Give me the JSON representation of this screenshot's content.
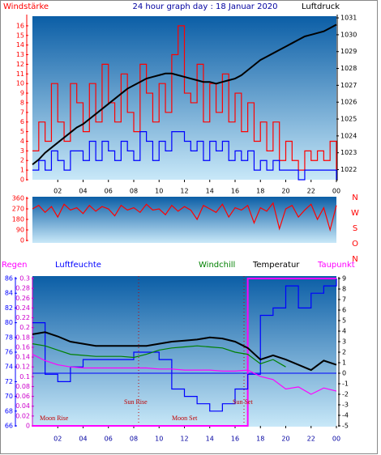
{
  "chart_data": [
    {
      "type": "line",
      "title": "24 hour graph day : 18 Januar 2020",
      "ylabel": "Windstärke",
      "y2label": "Luftdruck",
      "x": [
        0,
        0.5,
        1,
        1.5,
        2,
        2.5,
        3,
        3.5,
        4,
        4.5,
        5,
        5.5,
        6,
        6.5,
        7,
        7.5,
        8,
        8.5,
        9,
        9.5,
        10,
        10.5,
        11,
        11.5,
        12,
        12.5,
        13,
        13.5,
        14,
        14.5,
        15,
        15.5,
        16,
        16.5,
        17,
        17.5,
        18,
        18.5,
        19,
        19.5,
        20,
        20.5,
        21,
        21.5,
        22,
        22.5,
        23,
        23.5,
        24
      ],
      "xlim": [
        0,
        24
      ],
      "xticks": [
        {
          "value": 2,
          "label": "02"
        },
        {
          "value": 4,
          "label": "04"
        },
        {
          "value": 6,
          "label": "06"
        },
        {
          "value": 8,
          "label": "08"
        },
        10,
        12,
        14,
        16,
        18,
        20,
        22,
        {
          "value": 24,
          "label": "00"
        }
      ],
      "ylim": [
        0,
        17
      ],
      "yticks": [
        0,
        1,
        2,
        3,
        4,
        5,
        6,
        7,
        8,
        9,
        10,
        11,
        12,
        13,
        14,
        15,
        16
      ],
      "y2lim": [
        1021.4,
        1031.1
      ],
      "y2ticks": [
        1022,
        1023,
        1024,
        1025,
        1026,
        1027,
        1028,
        1029,
        1030,
        1031
      ],
      "series": [
        {
          "color": "#ff0000",
          "style": "step",
          "values": [
            3,
            6,
            4,
            10,
            6,
            4,
            10,
            8,
            5,
            10,
            6,
            12,
            8,
            6,
            11,
            7,
            5,
            12,
            9,
            6,
            10,
            7,
            13,
            16,
            9,
            8,
            12,
            6,
            10,
            7,
            11,
            6,
            9,
            5,
            8,
            4,
            6,
            3,
            6,
            2,
            4,
            2,
            1,
            3,
            2,
            3,
            2,
            4,
            1
          ]
        },
        {
          "color": "#0000ff",
          "style": "step",
          "values": [
            1,
            2,
            1,
            3,
            2,
            1,
            3,
            3,
            2,
            4,
            2,
            4,
            3,
            2,
            4,
            3,
            2,
            5,
            4,
            2,
            4,
            3,
            5,
            5,
            4,
            3,
            4,
            2,
            4,
            3,
            4,
            2,
            3,
            2,
            3,
            1,
            2,
            1,
            2,
            1,
            1,
            1,
            0,
            1,
            1,
            1,
            1,
            1,
            0
          ]
        },
        {
          "color": "#000000",
          "style": "line",
          "axis": "y2",
          "values": [
            1022.3,
            1022.6,
            1023.0,
            1023.3,
            1023.6,
            1023.9,
            1024.2,
            1024.5,
            1024.7,
            1025.0,
            1025.3,
            1025.6,
            1025.9,
            1026.2,
            1026.5,
            1026.8,
            1027.0,
            1027.2,
            1027.4,
            1027.5,
            1027.6,
            1027.7,
            1027.7,
            1027.6,
            1027.5,
            1027.4,
            1027.3,
            1027.2,
            1027.2,
            1027.1,
            1027.2,
            1027.3,
            1027.4,
            1027.6,
            1027.9,
            1028.2,
            1028.5,
            1028.7,
            1028.9,
            1029.1,
            1029.3,
            1029.5,
            1029.7,
            1029.9,
            1030.0,
            1030.1,
            1030.2,
            1030.4,
            1030.6
          ]
        }
      ]
    },
    {
      "type": "line",
      "x": [
        0,
        0.5,
        1,
        1.5,
        2,
        2.5,
        3,
        3.5,
        4,
        4.5,
        5,
        5.5,
        6,
        6.5,
        7,
        7.5,
        8,
        8.5,
        9,
        9.5,
        10,
        10.5,
        11,
        11.5,
        12,
        12.5,
        13,
        13.5,
        14,
        14.5,
        15,
        15.5,
        16,
        16.5,
        17,
        17.5,
        18,
        18.5,
        19,
        19.5,
        20,
        20.5,
        21,
        21.5,
        22,
        22.5,
        23,
        23.5,
        24
      ],
      "xlim": [
        0,
        24
      ],
      "ylim": [
        0,
        360
      ],
      "yticks": [
        0,
        90,
        180,
        270,
        360
      ],
      "compass": [
        "N",
        "W",
        "S",
        "O",
        "N"
      ],
      "series": [
        {
          "color": "#ff0000",
          "style": "line",
          "values": [
            270,
            300,
            240,
            290,
            200,
            310,
            260,
            280,
            230,
            300,
            250,
            290,
            270,
            210,
            300,
            260,
            280,
            240,
            310,
            260,
            270,
            220,
            300,
            250,
            290,
            260,
            180,
            300,
            270,
            240,
            310,
            200,
            280,
            260,
            300,
            150,
            280,
            250,
            320,
            100,
            270,
            300,
            200,
            260,
            310,
            180,
            280,
            90,
            300
          ]
        }
      ]
    },
    {
      "type": "line",
      "x": [
        0,
        1,
        2,
        3,
        4,
        5,
        6,
        7,
        8,
        9,
        10,
        11,
        12,
        13,
        14,
        15,
        16,
        17,
        18,
        19,
        20,
        21,
        22,
        23,
        24
      ],
      "xlim": [
        0,
        24
      ],
      "xticks": [
        {
          "value": 2,
          "label": "02"
        },
        {
          "value": 4,
          "label": "04"
        },
        {
          "value": 6,
          "label": "06"
        },
        {
          "value": 8,
          "label": "08"
        },
        10,
        12,
        14,
        16,
        18,
        20,
        22,
        {
          "value": 24,
          "label": "00"
        }
      ],
      "ylim": [
        66,
        86
      ],
      "yticks": [
        66,
        68,
        70,
        72,
        74,
        76,
        78,
        80,
        82,
        84,
        86
      ],
      "y3lim": [
        0,
        0.3
      ],
      "y3ticks": [
        0,
        0.02,
        0.04,
        0.06,
        0.08,
        0.1,
        0.12,
        0.14,
        0.16,
        0.18,
        0.2,
        0.22,
        0.24,
        0.26,
        0.28,
        0.3
      ],
      "y2lim": [
        -5,
        9
      ],
      "y2ticks": [
        -5,
        -4,
        -3,
        -2,
        -1,
        0,
        1,
        2,
        3,
        4,
        5,
        6,
        7,
        8,
        9
      ],
      "annotations": [
        "Moon Rise",
        "Sun Rise",
        "Moon Set",
        "Sun Set"
      ],
      "series": [
        {
          "name": "Regen",
          "color": "#ff00ff",
          "style": "area",
          "axis": "y3",
          "values": [
            0,
            0,
            0,
            0,
            0,
            0,
            0,
            0,
            0,
            0,
            0,
            0,
            0,
            0,
            0,
            0,
            0,
            0.3,
            0.3,
            0.3,
            0.3,
            0.3,
            0.3,
            0.3,
            0.3
          ]
        },
        {
          "name": "Luftfeuchte",
          "color": "#0000ff",
          "style": "step",
          "values": [
            80,
            73,
            72,
            74,
            75,
            75,
            75,
            75,
            76,
            76,
            75,
            71,
            70,
            69,
            68,
            69,
            71,
            73,
            81,
            82,
            85,
            82,
            84,
            85,
            86
          ]
        },
        {
          "name": "Windchill",
          "color": "#008000",
          "style": "line",
          "axis": "y2",
          "values": [
            2.8,
            2.6,
            2.2,
            1.8,
            1.7,
            1.6,
            1.6,
            1.6,
            1.5,
            1.8,
            2.2,
            2.4,
            2.5,
            2.6,
            2.5,
            2.4,
            2.0,
            1.8,
            0.9,
            1.3,
            0.6,
            null,
            null,
            null,
            null
          ]
        },
        {
          "name": "Temperatur",
          "color": "#000000",
          "style": "line",
          "axis": "y2",
          "values": [
            3.7,
            3.9,
            3.5,
            3.0,
            2.8,
            2.6,
            2.6,
            2.6,
            2.6,
            2.6,
            2.8,
            3.0,
            3.1,
            3.2,
            3.4,
            3.3,
            3.0,
            2.4,
            1.3,
            1.7,
            1.3,
            0.8,
            0.3,
            1.2,
            0.8
          ]
        },
        {
          "name": "Taupunkt",
          "color": "#ff00ff",
          "style": "line",
          "axis": "y2",
          "values": [
            1.8,
            1.2,
            0.8,
            0.6,
            0.5,
            0.5,
            0.5,
            0.5,
            0.5,
            0.5,
            0.4,
            0.4,
            0.3,
            0.3,
            0.3,
            0.2,
            0.2,
            0.3,
            -0.3,
            -0.6,
            -1.5,
            -1.3,
            -2.0,
            -1.4,
            -1.7
          ]
        }
      ]
    }
  ]
}
